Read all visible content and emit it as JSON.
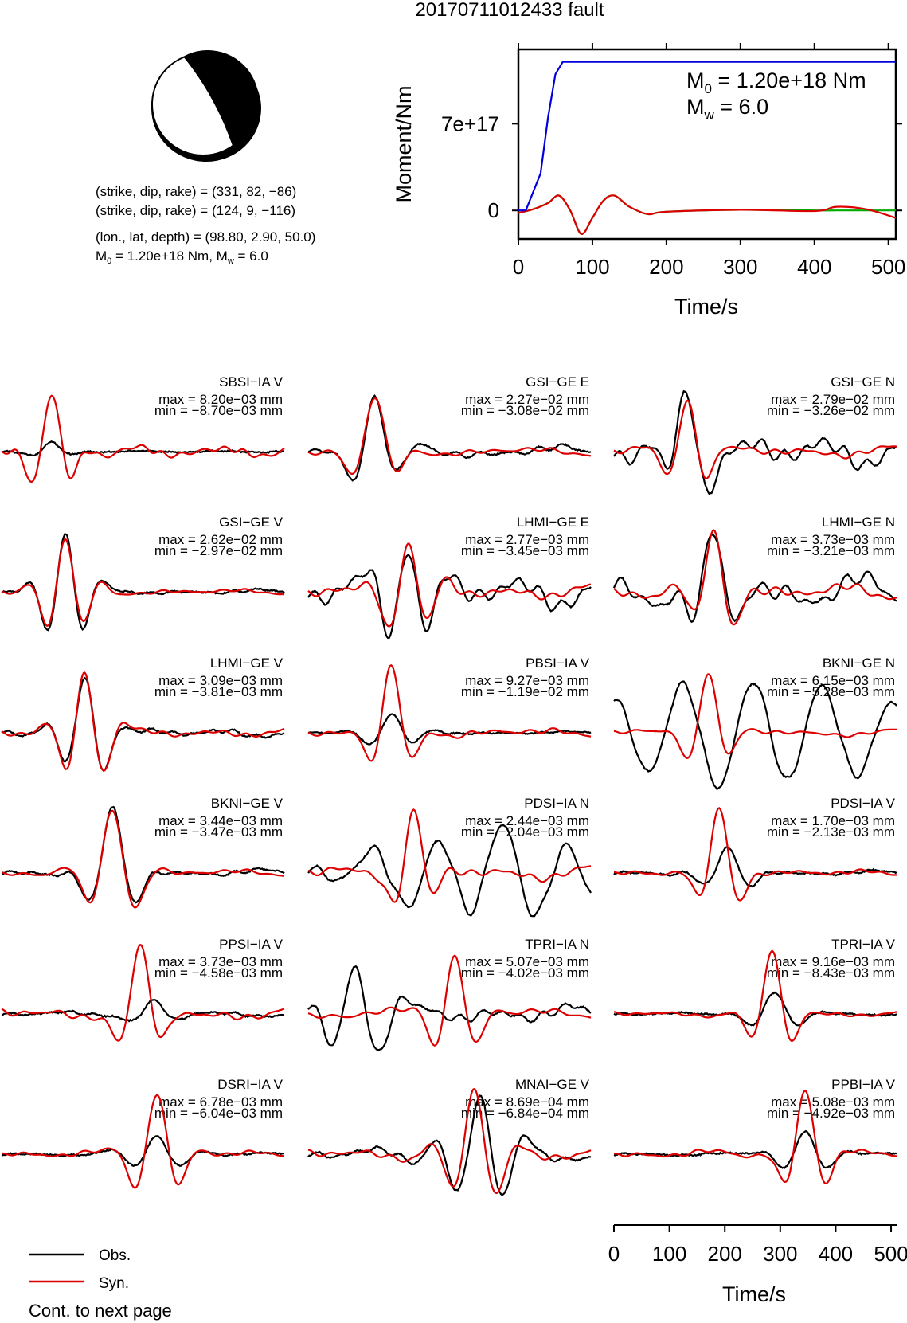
{
  "title": "20170711012433 fault",
  "mechanism": {
    "np1": "(strike, dip, rake) = (331, 82, −86)",
    "np2": "(strike, dip, rake) = (124, 9, −116)",
    "location": "(lon., lat, depth) = (98.80, 2.90, 50.0)",
    "moment_prefix": "M",
    "moment_rest": " = 1.20e+18 Nm, M",
    "mw_rest": " = 6.0"
  },
  "stf": {
    "ylabel": "Moment/Nm",
    "xlabel": "Time/s",
    "m0_text": " = 1.20e+18 Nm",
    "mw_text": " = 6.0",
    "yticks": [
      "0",
      "7e+17"
    ],
    "xticks": [
      "0",
      "100",
      "200",
      "300",
      "400",
      "500"
    ]
  },
  "legend": {
    "obs": "Obs.",
    "syn": "Syn."
  },
  "footer": "Cont. to next page",
  "time_axis": {
    "xlabel": "Time/s",
    "ticks": [
      "0",
      "100",
      "200",
      "300",
      "400",
      "500"
    ]
  },
  "colors": {
    "obs": "#000000",
    "syn": "#dd0000",
    "moment": "#0000dd",
    "rate": "#00aa00"
  },
  "chart_data": [
    {
      "type": "line",
      "title": "",
      "xlabel": "Time/s",
      "ylabel": "Moment/Nm",
      "xlim": [
        0,
        510
      ],
      "ylim": [
        -2.3e+17,
        1.3e+18
      ],
      "series": [
        {
          "name": "",
          "color": "blue",
          "x": [
            0,
            10,
            20,
            30,
            40,
            50,
            60,
            510
          ],
          "values": [
            0,
            0,
            1.5e+17,
            3e+17,
            7.5e+17,
            1.1e+18,
            1.2e+18,
            1.2e+18
          ]
        },
        {
          "name": "",
          "color": "red",
          "x": [
            0,
            20,
            40,
            55,
            70,
            85,
            100,
            115,
            130,
            150,
            175,
            200,
            300,
            400,
            430,
            470,
            510
          ],
          "values": [
            -2e+16,
            1e+16,
            6e+16,
            1.2e+17,
            0.0,
            -1.9e+17,
            -6e+16,
            8e+16,
            1.2e+17,
            3e+16,
            -3e+16,
            -1e+16,
            5000000000000000.0,
            -5000000000000000.0,
            3e+16,
            1e+16,
            -6e+16
          ]
        },
        {
          "name": "",
          "color": "green",
          "x": [
            0,
            20,
            40,
            55,
            70,
            85,
            100,
            115,
            130,
            150,
            175,
            200,
            300,
            400,
            430,
            470,
            510
          ],
          "values": [
            -2e+16,
            1e+16,
            6e+16,
            1.2e+17,
            0.0,
            -1.9e+17,
            -6e+16,
            8e+16,
            1.2e+17,
            3e+16,
            -3e+16,
            -1e+16,
            5000000000000000.0,
            0.0,
            0.0,
            0.0,
            0.0
          ]
        }
      ]
    },
    {
      "type": "line",
      "title": "",
      "xlabel": "Time/s",
      "xlim": [
        0,
        510
      ],
      "traces": [
        {
          "label": "SBSI−IA V",
          "max": "max = 8.20e−03 mm",
          "min": "min = −8.70e−03 mm",
          "obs": {
            "t0": 90,
            "f": 0.0115,
            "a": 0.14,
            "w": 38,
            "b": [
              [
                0,
                0
              ],
              [
                0.5,
                0.01
              ]
            ]
          },
          "syn": {
            "t0": 90,
            "f": 0.0125,
            "a": 0.85,
            "w": 45,
            "b": [
              [
                0,
                0
              ],
              [
                0.3,
                0.06
              ],
              [
                0.7,
                0.02
              ]
            ]
          }
        },
        {
          "label": "GSI−GE E",
          "max": "max = 2.27e−02 mm",
          "min": "min = −3.08e−02 mm",
          "obs": {
            "t0": 120,
            "f": 0.0105,
            "a": 0.85,
            "w": 48,
            "b": [
              [
                0,
                0.06
              ],
              [
                0.5,
                0.03
              ]
            ]
          },
          "syn": {
            "t0": 120,
            "f": 0.0105,
            "a": 0.8,
            "w": 46,
            "b": [
              [
                0,
                0.04
              ],
              [
                0.5,
                0.02
              ]
            ]
          }
        },
        {
          "label": "GSI−GE N",
          "max": "max = 2.79e−02 mm",
          "min": "min = −3.26e−02 mm",
          "obs": {
            "t0": 132,
            "f": 0.0115,
            "a": 0.9,
            "w": 45,
            "b": [
              [
                0,
                0.07
              ],
              [
                0.6,
                0.15
              ]
            ]
          },
          "syn": {
            "t0": 132,
            "f": 0.0115,
            "a": 0.85,
            "w": 42,
            "b": [
              [
                0,
                0.04
              ],
              [
                0.6,
                0.04
              ]
            ]
          }
        },
        {
          "label": "GSI−GE V",
          "max": "max = 2.62e−02 mm",
          "min": "min = −2.97e−02 mm",
          "obs": {
            "t0": 115,
            "f": 0.014,
            "a": 0.9,
            "w": 50,
            "b": [
              [
                0,
                0.02
              ],
              [
                0.5,
                0.02
              ]
            ]
          },
          "syn": {
            "t0": 115,
            "f": 0.014,
            "a": 0.8,
            "w": 50,
            "b": [
              [
                0,
                0.02
              ],
              [
                0.5,
                0.02
              ]
            ]
          }
        },
        {
          "label": "LHMI−GE E",
          "max": "max = 2.77e−03 mm",
          "min": "min = −3.45e−03 mm",
          "obs": {
            "t0": 180,
            "f": 0.013,
            "a": 0.85,
            "w": 55,
            "b": [
              [
                0,
                0.08
              ],
              [
                0.6,
                0.15
              ]
            ]
          },
          "syn": {
            "t0": 180,
            "f": 0.013,
            "a": 0.75,
            "w": 55,
            "b": [
              [
                0,
                0.04
              ],
              [
                0.5,
                0.06
              ]
            ]
          }
        },
        {
          "label": "LHMI−GE N",
          "max": "max = 3.73e−03 mm",
          "min": "min = −3.21e−03 mm",
          "obs": {
            "t0": 180,
            "f": 0.012,
            "a": 0.75,
            "w": 55,
            "b": [
              [
                0,
                0.12
              ],
              [
                0.7,
                0.12
              ]
            ]
          },
          "syn": {
            "t0": 180,
            "f": 0.012,
            "a": 0.9,
            "w": 45,
            "b": [
              [
                0,
                0.05
              ],
              [
                0.6,
                0.06
              ]
            ]
          }
        },
        {
          "label": "LHMI−GE V",
          "max": "max = 3.09e−03 mm",
          "min": "min = −3.81e−03 mm",
          "obs": {
            "t0": 150,
            "f": 0.013,
            "a": 0.85,
            "w": 50,
            "b": [
              [
                0,
                0.02
              ],
              [
                0.5,
                0.04
              ]
            ]
          },
          "syn": {
            "t0": 150,
            "f": 0.013,
            "a": 0.95,
            "w": 50,
            "b": [
              [
                0,
                0.02
              ],
              [
                0.4,
                0.04
              ]
            ]
          }
        },
        {
          "label": "PBSI−IA V",
          "max": "max = 9.27e−03 mm",
          "min": "min = −1.19e−02 mm",
          "obs": {
            "t0": 150,
            "f": 0.0115,
            "a": 0.28,
            "w": 55,
            "b": [
              [
                0,
                0.01
              ],
              [
                0.5,
                0.01
              ]
            ]
          },
          "syn": {
            "t0": 150,
            "f": 0.0115,
            "a": 0.95,
            "w": 45,
            "b": [
              [
                0,
                0.04
              ],
              [
                0.4,
                0.03
              ]
            ]
          }
        },
        {
          "label": "BKNI−GE N",
          "max": "max = 6.15e−03 mm",
          "min": "min = −5.28e−03 mm",
          "obs": {
            "t0": 250,
            "f": 0.008,
            "a": 0.75,
            "w": 400,
            "b": [
              [
                0,
                0.05
              ],
              [
                0.5,
                0.05
              ]
            ]
          },
          "syn": {
            "t0": 170,
            "f": 0.011,
            "a": 0.95,
            "w": 40,
            "b": [
              [
                0,
                0.03
              ],
              [
                0.6,
                0.02
              ]
            ]
          }
        },
        {
          "label": "BKNI−GE V",
          "max": "max = 3.44e−03 mm",
          "min": "min = −3.47e−03 mm",
          "obs": {
            "t0": 200,
            "f": 0.0105,
            "a": 0.95,
            "w": 50,
            "b": [
              [
                0,
                0.03
              ],
              [
                0.5,
                0.03
              ]
            ]
          },
          "syn": {
            "t0": 200,
            "f": 0.0105,
            "a": 0.95,
            "w": 55,
            "b": [
              [
                0,
                0.03
              ],
              [
                0.5,
                0.02
              ]
            ]
          }
        },
        {
          "label": "PDSI−IA N",
          "max": "max = 2.44e−03 mm",
          "min": "min = −2.04e−03 mm",
          "obs": {
            "t0": 350,
            "f": 0.0085,
            "a": 0.7,
            "w": 230,
            "b": [
              [
                0,
                0.1
              ],
              [
                0.5,
                0.05
              ]
            ]
          },
          "syn": {
            "t0": 190,
            "f": 0.0115,
            "a": 0.95,
            "w": 40,
            "b": [
              [
                0,
                0.05
              ],
              [
                0.6,
                0.05
              ]
            ]
          }
        },
        {
          "label": "PDSI−IA V",
          "max": "max = 1.70e−03 mm",
          "min": "min = −2.13e−03 mm",
          "obs": {
            "t0": 205,
            "f": 0.011,
            "a": 0.35,
            "w": 55,
            "b": [
              [
                0,
                0.02
              ],
              [
                0.5,
                0.02
              ]
            ]
          },
          "syn": {
            "t0": 190,
            "f": 0.0115,
            "a": 0.95,
            "w": 42,
            "b": [
              [
                0,
                0.02
              ],
              [
                0.4,
                0.03
              ]
            ]
          }
        },
        {
          "label": "PPSI−IA V",
          "max": "max = 3.73e−03 mm",
          "min": "min = −4.58e−03 mm",
          "obs": {
            "t0": 275,
            "f": 0.0105,
            "a": 0.18,
            "w": 55,
            "b": [
              [
                0,
                0.02
              ],
              [
                0.5,
                0.02
              ]
            ]
          },
          "syn": {
            "t0": 250,
            "f": 0.011,
            "a": 0.95,
            "w": 45,
            "b": [
              [
                0,
                0.05
              ],
              [
                0.4,
                0.04
              ]
            ]
          }
        },
        {
          "label": "TPRI−IA N",
          "max": "max = 5.07e−03 mm",
          "min": "min = −4.02e−03 mm",
          "obs": {
            "t0": 85,
            "f": 0.011,
            "a": 0.75,
            "w": 70,
            "b": [
              [
                0,
                0.05
              ],
              [
                0.5,
                0.08
              ]
            ]
          },
          "syn": {
            "t0": 265,
            "f": 0.0115,
            "a": 0.95,
            "w": 45,
            "b": [
              [
                0,
                0.05
              ],
              [
                0.5,
                0.02
              ]
            ]
          }
        },
        {
          "label": "TPRI−IA V",
          "max": "max = 9.16e−03 mm",
          "min": "min = −8.43e−03 mm",
          "obs": {
            "t0": 290,
            "f": 0.0105,
            "a": 0.32,
            "w": 55,
            "b": [
              [
                0,
                0.01
              ],
              [
                0.5,
                0.01
              ]
            ]
          },
          "syn": {
            "t0": 285,
            "f": 0.0115,
            "a": 0.95,
            "w": 42,
            "b": [
              [
                0,
                0.02
              ],
              [
                0.4,
                0.02
              ]
            ]
          }
        },
        {
          "label": "DSRI−IA V",
          "max": "max = 6.78e−03 mm",
          "min": "min = −6.04e−03 mm",
          "obs": {
            "t0": 280,
            "f": 0.011,
            "a": 0.28,
            "w": 65,
            "b": [
              [
                0,
                0.01
              ],
              [
                0.5,
                0.01
              ]
            ]
          },
          "syn": {
            "t0": 280,
            "f": 0.011,
            "a": 0.95,
            "w": 50,
            "b": [
              [
                0,
                0.02
              ],
              [
                0.4,
                0.03
              ]
            ]
          }
        },
        {
          "label": "MNAI−GE V",
          "max": "max = 8.69e−04 mm",
          "min": "min = −6.84e−04 mm",
          "obs": {
            "t0": 310,
            "f": 0.0115,
            "a": 0.85,
            "w": 75,
            "b": [
              [
                0,
                0.04
              ],
              [
                0.5,
                0.05
              ]
            ]
          },
          "syn": {
            "t0": 300,
            "f": 0.0115,
            "a": 0.95,
            "w": 60,
            "b": [
              [
                0,
                0.04
              ],
              [
                0.4,
                0.04
              ]
            ]
          }
        },
        {
          "label": "PPBI−IA V",
          "max": "max = 5.08e−03 mm",
          "min": "min = −4.92e−03 mm",
          "obs": {
            "t0": 345,
            "f": 0.0115,
            "a": 0.35,
            "w": 55,
            "b": [
              [
                0,
                0.01
              ],
              [
                0.5,
                0.01
              ]
            ]
          },
          "syn": {
            "t0": 345,
            "f": 0.0115,
            "a": 0.95,
            "w": 45,
            "b": [
              [
                0,
                0.03
              ],
              [
                0.4,
                0.03
              ]
            ]
          }
        }
      ]
    }
  ]
}
